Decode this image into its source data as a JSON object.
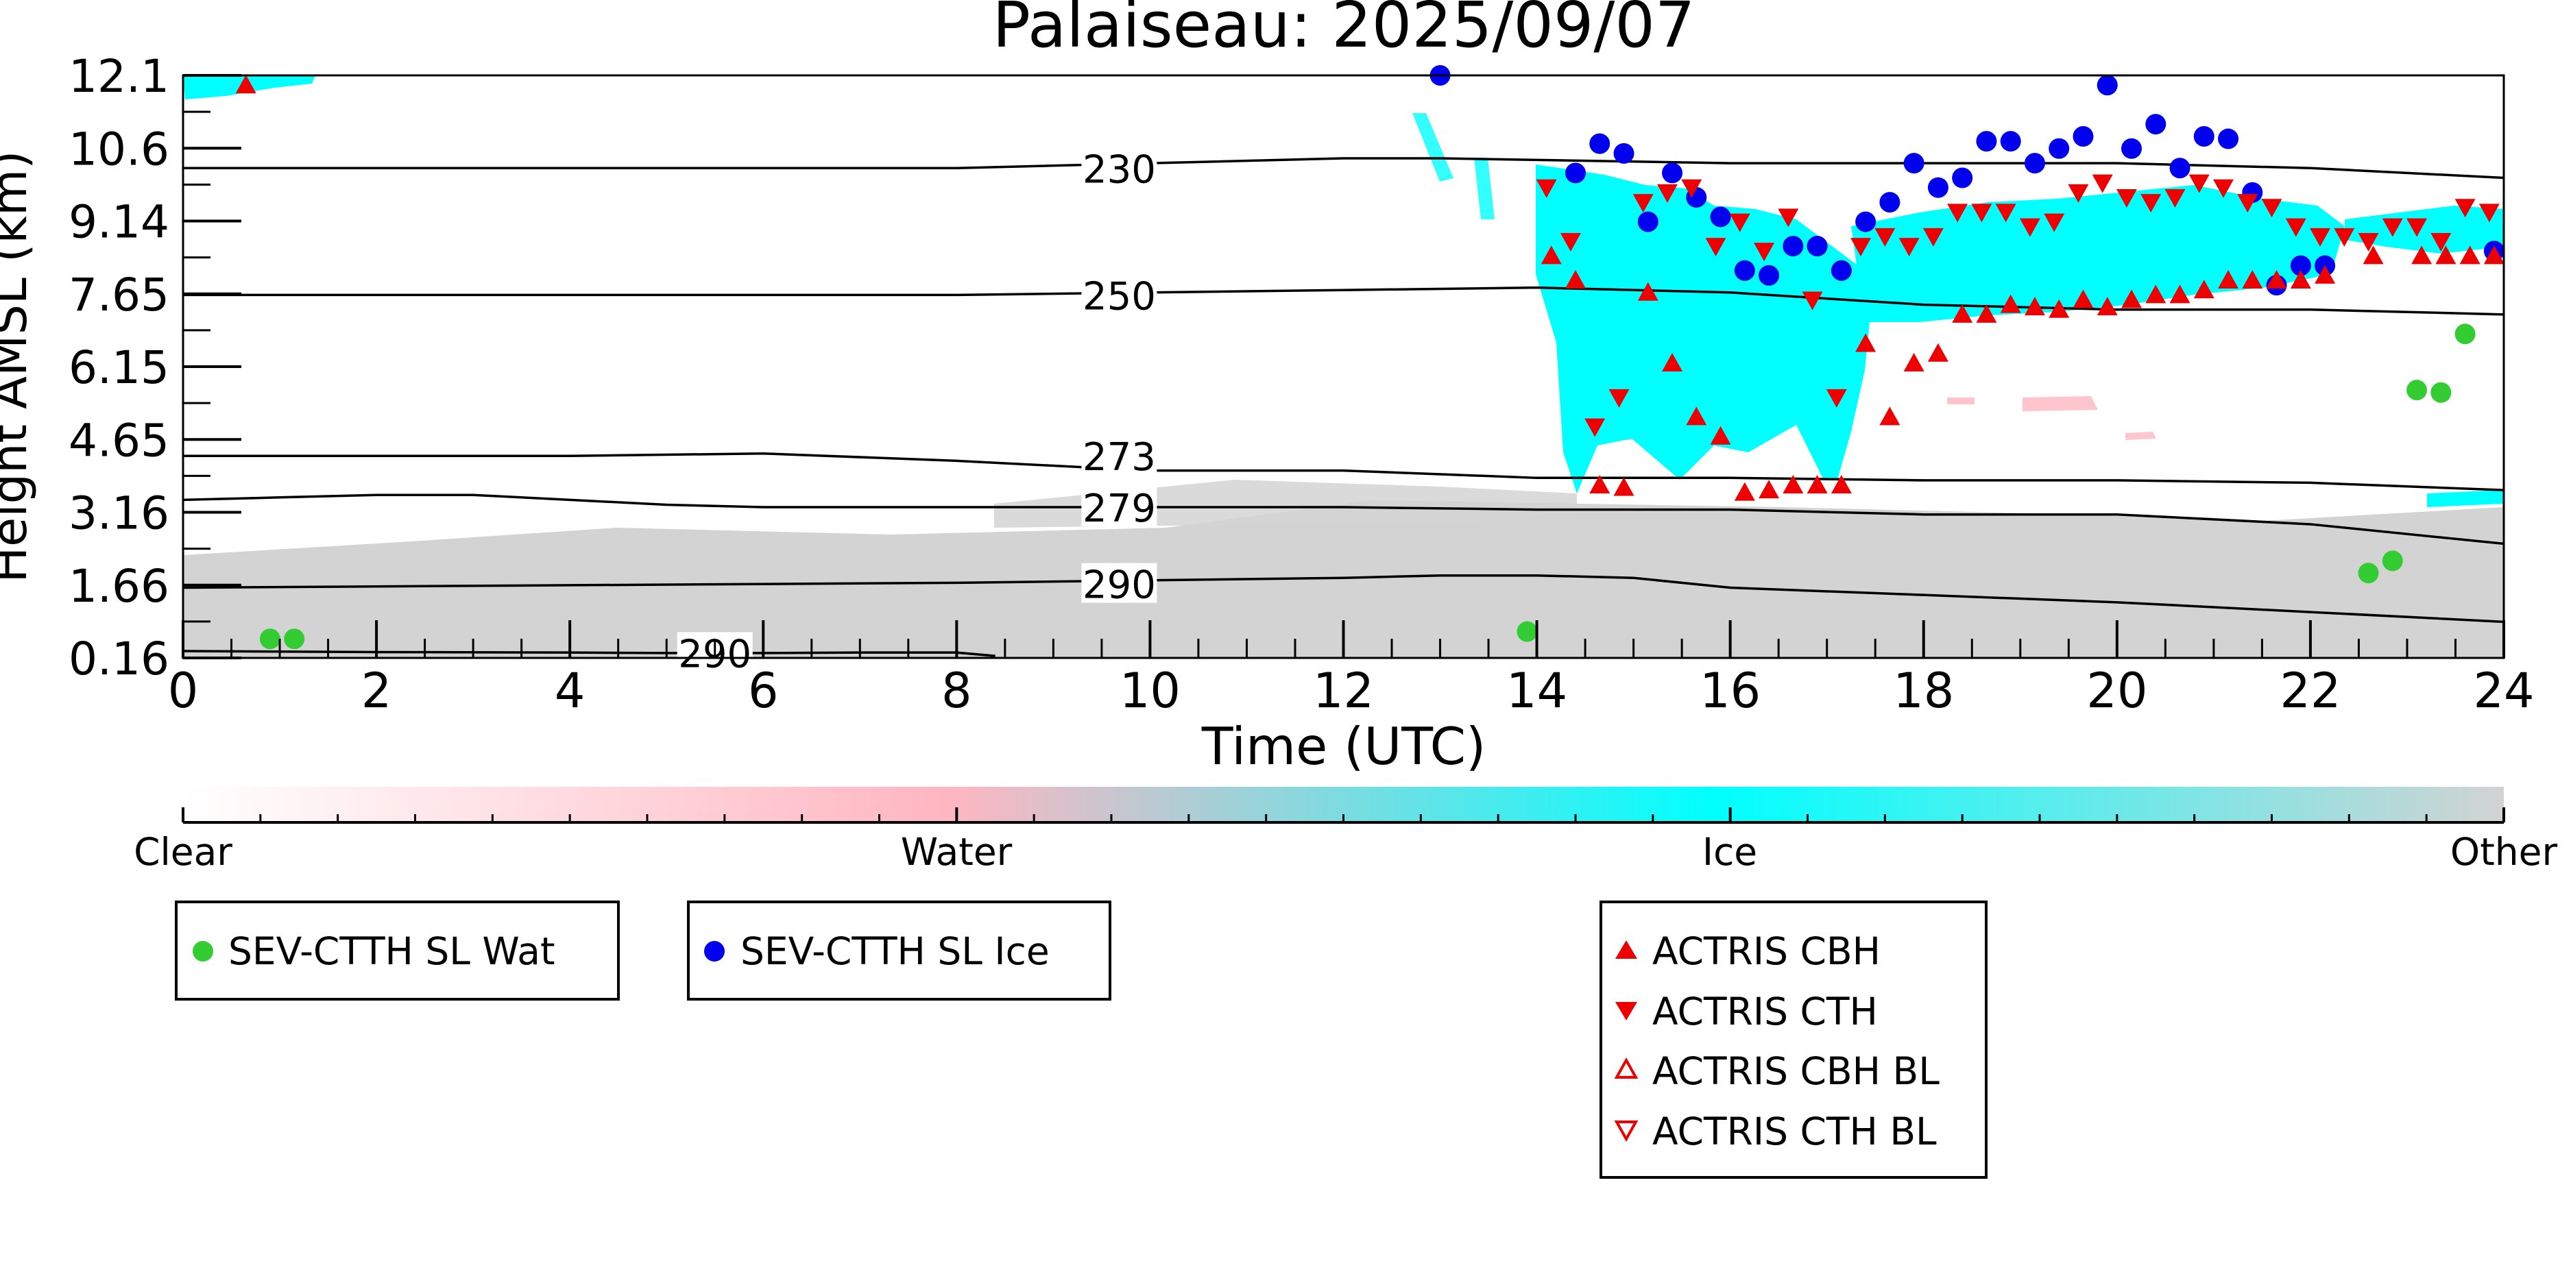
{
  "chart_data": {
    "type": "scatter",
    "title": "Palaiseau: 2025/09/07",
    "xlabel": "Time (UTC)",
    "ylabel": "Height AMSL (km)",
    "xlim": [
      0,
      24
    ],
    "ylim": [
      0.16,
      12.1
    ],
    "x_ticks": [
      "0",
      "2",
      "4",
      "6",
      "8",
      "10",
      "12",
      "14",
      "16",
      "18",
      "20",
      "22",
      "24"
    ],
    "y_ticks": [
      "0.16",
      "1.66",
      "3.16",
      "4.65",
      "6.15",
      "7.65",
      "9.14",
      "10.6",
      "12.1"
    ],
    "grid": false,
    "colorbar": {
      "labels": [
        "Clear",
        "Water",
        "Ice",
        "Other"
      ],
      "colors": [
        "#ffffff",
        "#ffb6c1",
        "#00ffff",
        "#d3d3d3"
      ]
    },
    "contours": [
      {
        "label": "230",
        "x": [
          0,
          4,
          8,
          10,
          12,
          13,
          16,
          20,
          22,
          24
        ],
        "y": [
          10.2,
          10.2,
          10.2,
          10.3,
          10.4,
          10.4,
          10.3,
          10.3,
          10.2,
          10.0
        ]
      },
      {
        "label": "250",
        "x": [
          0,
          4,
          8,
          10,
          12,
          14,
          16,
          18,
          20,
          22,
          24
        ],
        "y": [
          7.6,
          7.6,
          7.6,
          7.65,
          7.7,
          7.75,
          7.65,
          7.4,
          7.3,
          7.3,
          7.2
        ]
      },
      {
        "label": "273",
        "x": [
          0,
          2,
          4,
          6,
          8,
          10,
          12,
          14,
          16,
          18,
          20,
          22,
          24
        ],
        "y": [
          4.3,
          4.3,
          4.3,
          4.35,
          4.2,
          4.0,
          4.0,
          3.85,
          3.85,
          3.8,
          3.8,
          3.75,
          3.6
        ]
      },
      {
        "label": "279",
        "x": [
          0,
          1,
          2,
          3,
          4,
          5,
          6,
          8,
          10,
          12,
          14,
          16,
          18,
          20,
          22,
          24
        ],
        "y": [
          3.4,
          3.45,
          3.5,
          3.5,
          3.4,
          3.3,
          3.25,
          3.25,
          3.25,
          3.25,
          3.2,
          3.2,
          3.1,
          3.1,
          2.9,
          2.5
        ]
      },
      {
        "label": "290",
        "x": [
          0,
          4,
          8,
          10,
          12,
          13,
          14,
          15,
          16,
          18,
          20,
          22,
          24
        ],
        "y": [
          1.6,
          1.65,
          1.7,
          1.75,
          1.8,
          1.85,
          1.85,
          1.8,
          1.6,
          1.45,
          1.3,
          1.1,
          0.9
        ]
      },
      {
        "label": "290",
        "x": [
          0,
          2,
          4,
          5,
          6,
          7,
          8,
          8.4
        ],
        "y": [
          0.3,
          0.28,
          0.27,
          0.26,
          0.26,
          0.27,
          0.27,
          0.2
        ]
      }
    ],
    "series": [
      {
        "name": "SEV-CTTH SL Wat",
        "marker": "circle",
        "color": "#33cc33",
        "x": [
          0.9,
          1.15,
          13.9,
          22.6,
          22.85,
          23.1,
          23.35,
          23.6
        ],
        "y": [
          0.55,
          0.55,
          0.7,
          1.9,
          2.15,
          5.65,
          5.6,
          6.8
        ]
      },
      {
        "name": "SEV-CTTH SL Ice",
        "marker": "circle",
        "color": "#0000ee",
        "x": [
          13.0,
          14.4,
          14.65,
          14.9,
          15.15,
          15.4,
          15.65,
          15.9,
          16.15,
          16.4,
          16.65,
          16.9,
          17.15,
          17.4,
          17.65,
          17.9,
          18.15,
          18.4,
          18.65,
          18.9,
          19.15,
          19.4,
          19.65,
          19.9,
          20.15,
          20.4,
          20.65,
          20.9,
          21.15,
          21.4,
          21.65,
          21.9,
          22.15,
          23.9
        ],
        "y": [
          12.1,
          10.1,
          10.7,
          10.5,
          9.1,
          10.1,
          9.6,
          9.2,
          8.1,
          8.0,
          8.6,
          8.6,
          8.1,
          9.1,
          9.5,
          10.3,
          9.8,
          10.0,
          10.75,
          10.75,
          10.3,
          10.6,
          10.85,
          11.9,
          10.6,
          11.1,
          10.2,
          10.85,
          10.8,
          9.7,
          7.8,
          8.2,
          8.2,
          8.5
        ]
      },
      {
        "name": "ACTRIS CBH",
        "marker": "triangle-up",
        "color": "#ee0000",
        "x": [
          0.65,
          14.15,
          14.4,
          14.65,
          14.9,
          15.15,
          15.4,
          15.65,
          15.9,
          16.15,
          16.4,
          16.65,
          16.9,
          17.15,
          17.4,
          17.65,
          17.9,
          18.15,
          18.4,
          18.65,
          18.9,
          19.15,
          19.4,
          19.65,
          19.9,
          20.15,
          20.4,
          20.65,
          20.9,
          21.15,
          21.4,
          21.65,
          21.9,
          22.15,
          22.65,
          23.15,
          23.4,
          23.65,
          23.9
        ],
        "y": [
          11.9,
          8.4,
          7.9,
          3.7,
          3.65,
          7.65,
          6.2,
          5.1,
          4.7,
          3.55,
          3.6,
          3.7,
          3.7,
          3.7,
          6.6,
          5.1,
          6.2,
          6.4,
          7.2,
          7.2,
          7.4,
          7.35,
          7.3,
          7.5,
          7.35,
          7.5,
          7.6,
          7.6,
          7.7,
          7.9,
          7.9,
          7.9,
          7.9,
          8.0,
          8.4,
          8.4,
          8.4,
          8.4,
          8.4
        ]
      },
      {
        "name": "ACTRIS CTH",
        "marker": "triangle-down",
        "color": "#ee0000",
        "x": [
          14.1,
          14.35,
          14.6,
          14.85,
          15.1,
          15.35,
          15.6,
          15.85,
          16.1,
          16.35,
          16.6,
          16.85,
          17.1,
          17.35,
          17.6,
          17.85,
          18.1,
          18.35,
          18.6,
          18.85,
          19.1,
          19.35,
          19.6,
          19.85,
          20.1,
          20.35,
          20.6,
          20.85,
          21.1,
          21.35,
          21.6,
          21.85,
          22.1,
          22.35,
          22.6,
          22.85,
          23.1,
          23.35,
          23.6,
          23.85
        ],
        "y": [
          9.8,
          8.7,
          4.9,
          5.5,
          9.5,
          9.7,
          9.8,
          8.6,
          9.1,
          8.5,
          9.2,
          7.5,
          5.5,
          8.6,
          8.8,
          8.6,
          8.8,
          9.3,
          9.3,
          9.3,
          9.0,
          9.1,
          9.7,
          9.9,
          9.6,
          9.5,
          9.6,
          9.9,
          9.8,
          9.5,
          9.4,
          9.0,
          8.8,
          8.8,
          8.7,
          9.0,
          9.0,
          8.7,
          9.4,
          9.3
        ]
      },
      {
        "name": "ACTRIS CBH BL",
        "marker": "triangle-up-open",
        "color": "#ee0000",
        "x": [],
        "y": []
      },
      {
        "name": "ACTRIS CTH BL",
        "marker": "triangle-down-open",
        "color": "#ee0000",
        "x": [],
        "y": []
      }
    ]
  }
}
